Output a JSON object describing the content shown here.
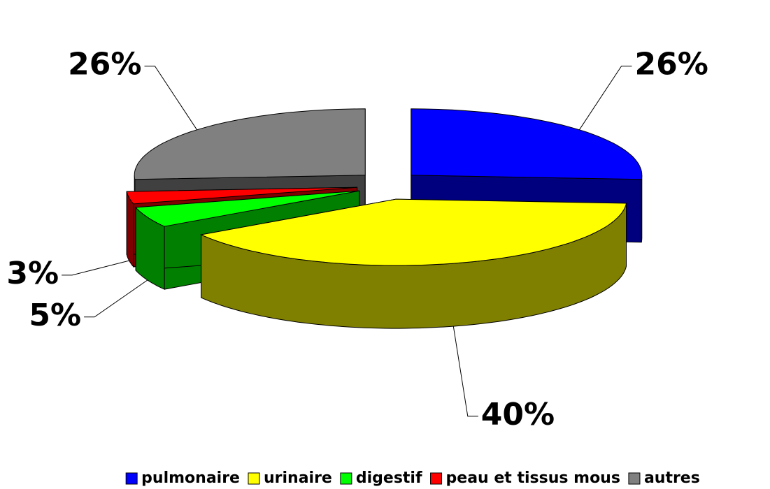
{
  "chart_data": {
    "type": "pie",
    "categories": [
      "pulmonaire",
      "urinaire",
      "digestif",
      "peau et tissus mous",
      "autres"
    ],
    "values": [
      26,
      40,
      5,
      3,
      26
    ],
    "value_labels": [
      "26%",
      "40%",
      "5%",
      "3%",
      "26%"
    ],
    "colors": [
      "#0000ff",
      "#ffff00",
      "#00ff00",
      "#ff0000",
      "#808080"
    ],
    "legend": "bottom"
  }
}
